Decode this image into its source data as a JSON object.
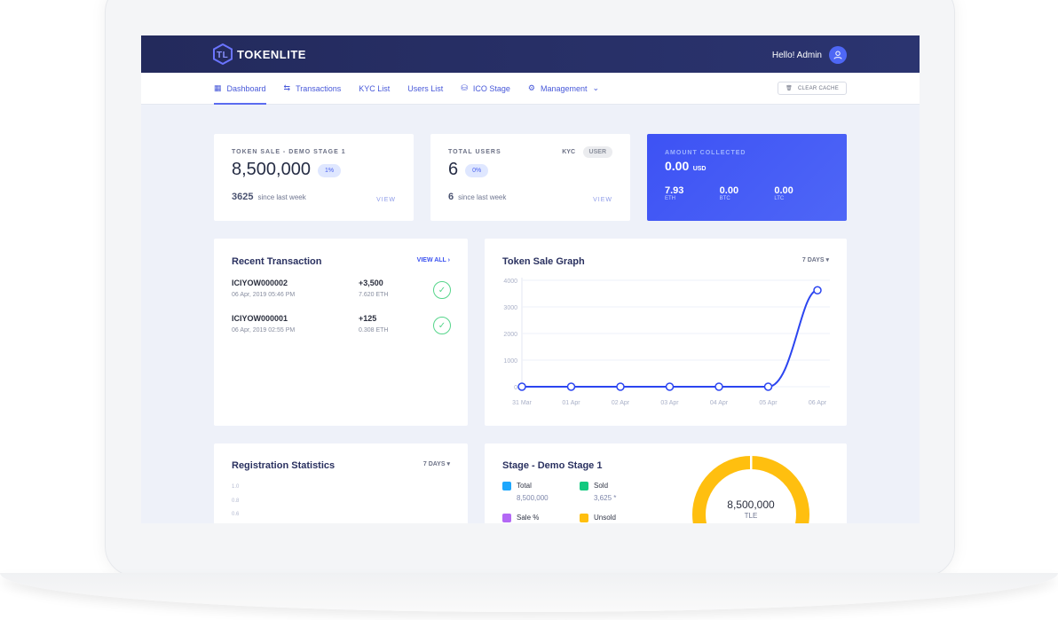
{
  "header": {
    "brand": "TOKENLITE",
    "greeting": "Hello! Admin"
  },
  "nav": {
    "items": [
      {
        "label": "Dashboard",
        "icon": "grid-icon"
      },
      {
        "label": "Transactions",
        "icon": "transfer-icon"
      },
      {
        "label": "KYC List"
      },
      {
        "label": "Users List"
      },
      {
        "label": "ICO Stage",
        "icon": "coins-icon"
      },
      {
        "label": "Management",
        "icon": "gear-icon"
      }
    ],
    "clear_cache": "CLEAR CACHE"
  },
  "token_sale": {
    "label": "TOKEN SALE - DEMO STAGE 1",
    "value": "8,500,000",
    "pct": "1%",
    "since_value": "3625",
    "since_label": "since last week",
    "view": "VIEW"
  },
  "users": {
    "label": "TOTAL USERS",
    "kyc": "KYC",
    "user": "USER",
    "value": "6",
    "pct": "0%",
    "since_value": "6",
    "since_label": "since last week",
    "view": "VIEW"
  },
  "amount": {
    "label": "AMOUNT COLLECTED",
    "value": "0.00",
    "unit": "USD",
    "coins": [
      {
        "v": "7.93",
        "c": "ETH"
      },
      {
        "v": "0.00",
        "c": "BTC"
      },
      {
        "v": "0.00",
        "c": "LTC"
      }
    ]
  },
  "recent": {
    "title": "Recent Transaction",
    "view_all": "VIEW ALL",
    "rows": [
      {
        "id": "ICIYOW000002",
        "date": "06 Apr, 2019 05:46 PM",
        "tokens": "+3,500",
        "eth": "7.620 ETH"
      },
      {
        "id": "ICIYOW000001",
        "date": "06 Apr, 2019 02:55 PM",
        "tokens": "+125",
        "eth": "0.308 ETH"
      }
    ]
  },
  "graph": {
    "title": "Token Sale Graph",
    "range": "7 DAYS"
  },
  "chart_data": {
    "type": "line",
    "x": [
      "31 Mar",
      "01 Apr",
      "02 Apr",
      "03 Apr",
      "04 Apr",
      "05 Apr",
      "06 Apr"
    ],
    "values": [
      0,
      0,
      0,
      0,
      0,
      0,
      3625
    ],
    "ylim": [
      0,
      4000
    ],
    "yticks": [
      "0",
      "1000",
      "2000",
      "3000",
      "4000"
    ],
    "grid": true,
    "color": "#2b45f0"
  },
  "registration": {
    "title": "Registration Statistics",
    "range": "7 DAYS",
    "yticks": [
      "1.0",
      "0.8",
      "0.6"
    ]
  },
  "stage": {
    "title": "Stage - Demo Stage 1",
    "legend": [
      {
        "label": "Total",
        "value": "8,500,000",
        "color": "#1ea7fd"
      },
      {
        "label": "Sold",
        "value": "3,625 *",
        "color": "#13c97f"
      },
      {
        "label": "Sale %",
        "value": "",
        "color": "#b368f5"
      },
      {
        "label": "Unsold",
        "value": "",
        "color": "#ffbf0f"
      }
    ],
    "donut_value": "8,500,000",
    "donut_unit": "TLE",
    "donut_color": "#ffbf0f"
  }
}
